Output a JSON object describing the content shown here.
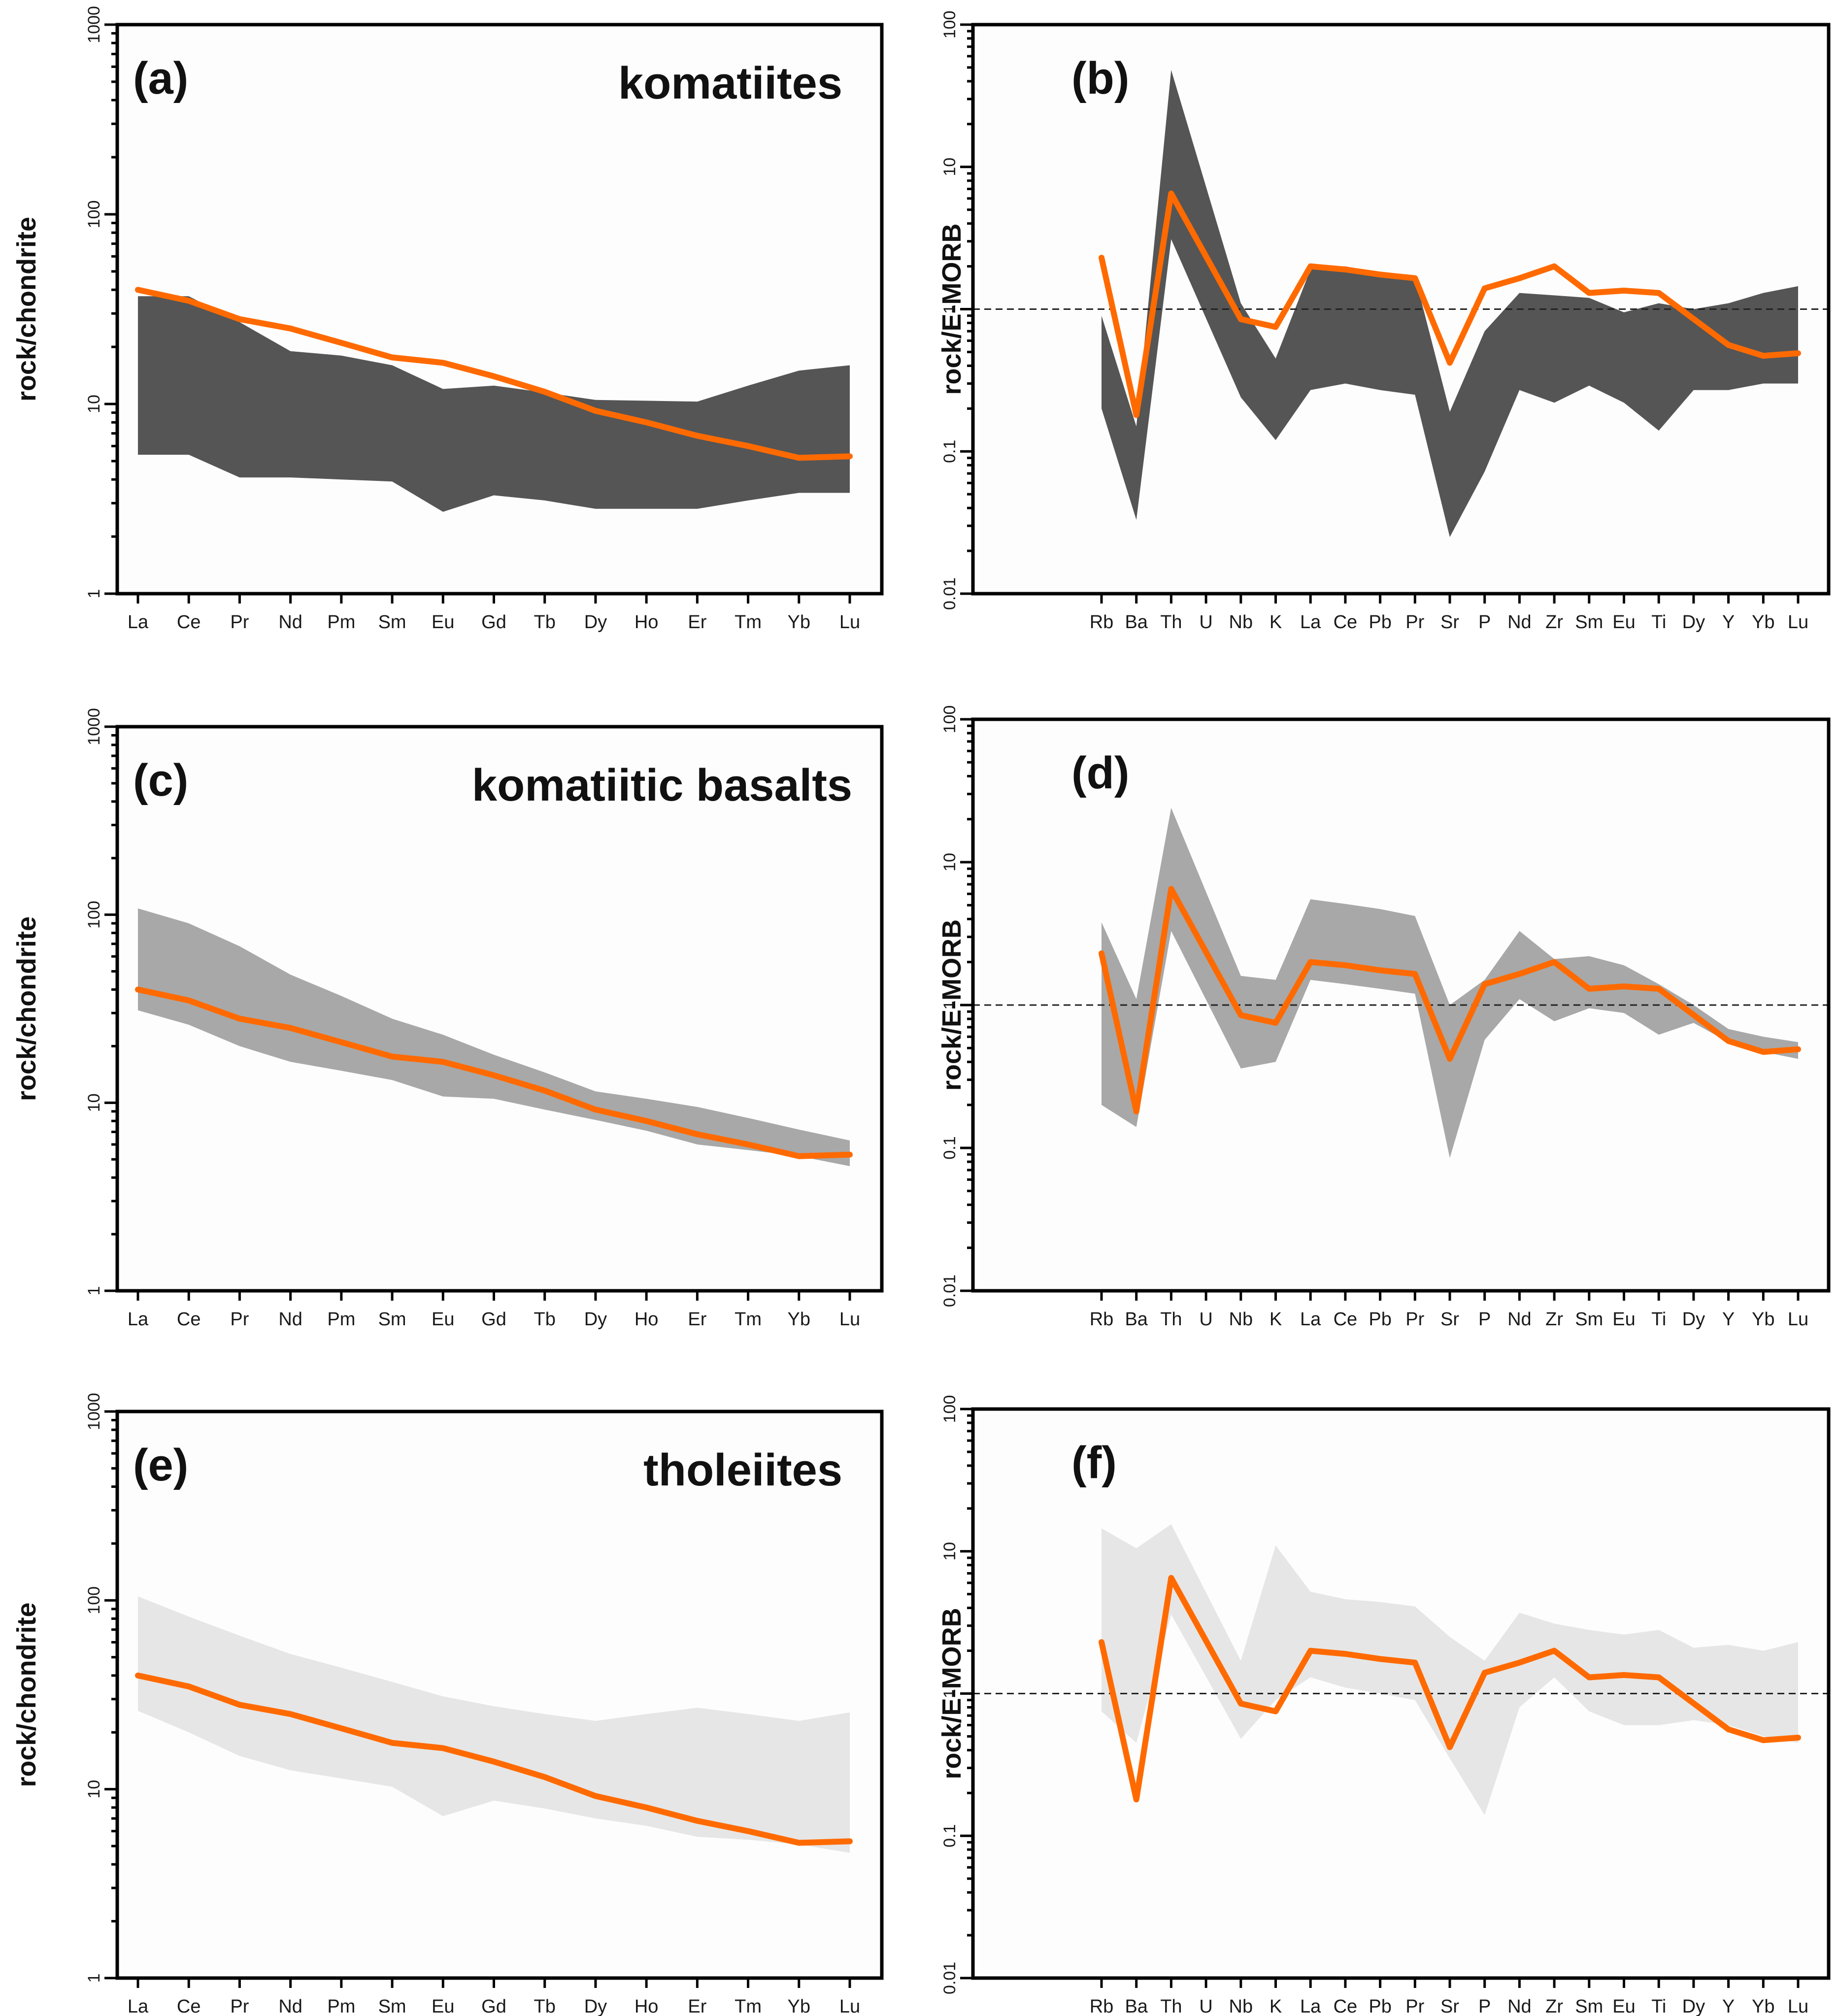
{
  "figure": {
    "colors": {
      "dark_band": "#555555",
      "medium_band": "#a8a8a8",
      "light_band": "#e6e6e6",
      "average_line": "#ff6a00",
      "reference_line": "#222222"
    }
  },
  "chart_data": [
    {
      "id": "a",
      "type": "area",
      "panel_label": "(a)",
      "title": "komatiites",
      "xlabel": "",
      "ylabel": "rock/chondrite",
      "yscale": "log",
      "ylim": [
        1,
        1000
      ],
      "ytick_labels": [
        "1",
        "10",
        "100",
        "1000"
      ],
      "grid": false,
      "categories": [
        "La",
        "Ce",
        "Pr",
        "Nd",
        "Pm",
        "Sm",
        "Eu",
        "Gd",
        "Tb",
        "Dy",
        "Ho",
        "Er",
        "Tm",
        "Yb",
        "Lu"
      ],
      "band_color": "#555555",
      "series": [
        {
          "name": "range upper",
          "values": [
            37,
            37,
            27,
            19,
            18,
            16,
            12,
            12.5,
            11.5,
            10.5,
            10.4,
            10.3,
            12.5,
            15,
            16
          ]
        },
        {
          "name": "range lower",
          "values": [
            5.4,
            5.4,
            4.1,
            4.1,
            4.0,
            3.9,
            2.7,
            3.3,
            3.1,
            2.8,
            2.8,
            2.8,
            3.1,
            3.4,
            3.4
          ]
        },
        {
          "name": "average",
          "values": [
            40,
            35,
            28,
            25,
            21,
            17.6,
            16.5,
            14,
            11.6,
            9.2,
            8,
            6.8,
            6,
            5.2,
            5.3
          ]
        }
      ]
    },
    {
      "id": "b",
      "type": "area",
      "panel_label": "(b)",
      "title": "",
      "xlabel": "",
      "ylabel": "rock/E-MORB",
      "yscale": "log",
      "ylim": [
        0.01,
        100
      ],
      "ytick_labels": [
        "0.01",
        "0.1",
        "1",
        "10",
        "100"
      ],
      "reference_value": 1,
      "grid": false,
      "categories": [
        "Rb",
        "Ba",
        "Th",
        "U",
        "Nb",
        "K",
        "La",
        "Ce",
        "Pb",
        "Pr",
        "Sr",
        "P",
        "Nd",
        "Zr",
        "Sm",
        "Eu",
        "Ti",
        "Dy",
        "Y",
        "Yb",
        "Lu"
      ],
      "band_color": "#555555",
      "series": [
        {
          "name": "range upper",
          "values": [
            0.9,
            0.15,
            48,
            null,
            1.1,
            0.45,
            1.9,
            2.0,
            1.8,
            1.7,
            0.19,
            0.7,
            1.3,
            1.25,
            1.2,
            0.95,
            1.1,
            1.0,
            1.1,
            1.3,
            1.45
          ]
        },
        {
          "name": "range lower",
          "values": [
            0.2,
            0.033,
            3.1,
            null,
            0.24,
            0.12,
            0.27,
            0.3,
            0.27,
            0.25,
            0.025,
            0.072,
            0.27,
            0.22,
            0.29,
            0.22,
            0.14,
            0.27,
            0.27,
            0.3,
            0.3
          ]
        },
        {
          "name": "average",
          "values": [
            2.3,
            0.18,
            6.5,
            null,
            0.85,
            0.75,
            2.0,
            1.9,
            1.75,
            1.65,
            0.42,
            1.4,
            1.65,
            2.0,
            1.3,
            1.35,
            1.3,
            null,
            0.56,
            0.47,
            0.49
          ]
        }
      ]
    },
    {
      "id": "c",
      "type": "area",
      "panel_label": "(c)",
      "title": "komatiitic basalts",
      "xlabel": "",
      "ylabel": "rock/chondrite",
      "yscale": "log",
      "ylim": [
        1,
        1000
      ],
      "ytick_labels": [
        "1",
        "10",
        "100",
        "1000"
      ],
      "grid": false,
      "categories": [
        "La",
        "Ce",
        "Pr",
        "Nd",
        "Pm",
        "Sm",
        "Eu",
        "Gd",
        "Tb",
        "Dy",
        "Ho",
        "Er",
        "Tm",
        "Yb",
        "Lu"
      ],
      "band_color": "#a8a8a8",
      "series": [
        {
          "name": "range upper",
          "values": [
            108,
            90,
            68,
            48,
            37,
            28,
            23,
            18,
            14.5,
            11.5,
            10.5,
            9.5,
            8.3,
            7.2,
            6.3
          ]
        },
        {
          "name": "range lower",
          "values": [
            31,
            26,
            20,
            16.5,
            14.8,
            13.2,
            10.8,
            10.5,
            9.2,
            8.1,
            7.1,
            6,
            5.6,
            5.2,
            4.6
          ]
        },
        {
          "name": "average",
          "values": [
            40,
            35,
            28,
            25,
            21,
            17.6,
            16.5,
            14,
            11.6,
            9.2,
            8,
            6.8,
            6,
            5.2,
            5.3
          ]
        }
      ]
    },
    {
      "id": "d",
      "type": "area",
      "panel_label": "(d)",
      "title": "",
      "xlabel": "",
      "ylabel": "rock/E-MORB",
      "yscale": "log",
      "ylim": [
        0.01,
        100
      ],
      "ytick_labels": [
        "0.01",
        "0.1",
        "1",
        "10",
        "100"
      ],
      "reference_value": 1,
      "grid": false,
      "categories": [
        "Rb",
        "Ba",
        "Th",
        "U",
        "Nb",
        "K",
        "La",
        "Ce",
        "Pb",
        "Pr",
        "Sr",
        "P",
        "Nd",
        "Zr",
        "Sm",
        "Eu",
        "Ti",
        "Dy",
        "Y",
        "Yb",
        "Lu"
      ],
      "band_color": "#a8a8a8",
      "series": [
        {
          "name": "range upper",
          "values": [
            3.8,
            1.1,
            24,
            null,
            1.6,
            1.5,
            5.5,
            5.1,
            4.7,
            4.2,
            1.0,
            1.5,
            3.3,
            2.1,
            2.2,
            1.9,
            1.4,
            1.0,
            0.68,
            0.6,
            0.55
          ]
        },
        {
          "name": "range lower",
          "values": [
            0.2,
            0.14,
            3.3,
            null,
            0.36,
            0.4,
            1.5,
            1.4,
            1.3,
            1.2,
            0.085,
            0.57,
            1.1,
            0.77,
            0.95,
            0.88,
            0.62,
            0.75,
            0.55,
            0.47,
            0.42
          ]
        },
        {
          "name": "average",
          "values": [
            2.3,
            0.18,
            6.5,
            null,
            0.85,
            0.75,
            2.0,
            1.9,
            1.75,
            1.65,
            0.42,
            1.4,
            1.65,
            2.0,
            1.3,
            1.35,
            1.3,
            null,
            0.56,
            0.47,
            0.49
          ]
        }
      ]
    },
    {
      "id": "e",
      "type": "area",
      "panel_label": "(e)",
      "title": "tholeiites",
      "xlabel": "",
      "ylabel": "rock/chondrite",
      "yscale": "log",
      "ylim": [
        1,
        1000
      ],
      "ytick_labels": [
        "1",
        "10",
        "100",
        "1000"
      ],
      "grid": false,
      "categories": [
        "La",
        "Ce",
        "Pr",
        "Nd",
        "Pm",
        "Sm",
        "Eu",
        "Gd",
        "Tb",
        "Dy",
        "Ho",
        "Er",
        "Tm",
        "Yb",
        "Lu"
      ],
      "band_color": "#e6e6e6",
      "series": [
        {
          "name": "range upper",
          "values": [
            105,
            82,
            65,
            52,
            44,
            37,
            31,
            27.5,
            25,
            23,
            25,
            27,
            25,
            23,
            25.5
          ]
        },
        {
          "name": "range lower",
          "values": [
            26,
            20,
            15,
            12.6,
            11.4,
            10.3,
            7.2,
            8.7,
            7.9,
            7,
            6.4,
            5.6,
            5.4,
            5.1,
            4.6
          ]
        },
        {
          "name": "average",
          "values": [
            40,
            35,
            28,
            25,
            21,
            17.6,
            16.5,
            14,
            11.6,
            9.2,
            8,
            6.8,
            6,
            5.2,
            5.3
          ]
        }
      ]
    },
    {
      "id": "f",
      "type": "area",
      "panel_label": "(f)",
      "title": "",
      "xlabel": "",
      "ylabel": "rock/E-MORB",
      "yscale": "log",
      "ylim": [
        0.01,
        100
      ],
      "ytick_labels": [
        "0.01",
        "0.1",
        "1",
        "10",
        "100"
      ],
      "reference_value": 1,
      "grid": false,
      "categories": [
        "Rb",
        "Ba",
        "Th",
        "U",
        "Nb",
        "K",
        "La",
        "Ce",
        "Pb",
        "Pr",
        "Sr",
        "P",
        "Nd",
        "Zr",
        "Sm",
        "Eu",
        "Ti",
        "Dy",
        "Y",
        "Yb",
        "Lu"
      ],
      "band_color": "#e6e6e6",
      "series": [
        {
          "name": "range upper",
          "values": [
            14.5,
            10.5,
            15.5,
            null,
            1.7,
            11,
            5.2,
            4.6,
            4.4,
            4.1,
            2.5,
            1.7,
            3.7,
            3.1,
            2.8,
            2.6,
            2.8,
            2.1,
            2.2,
            2.0,
            2.3
          ]
        },
        {
          "name": "range lower",
          "values": [
            0.75,
            0.45,
            3.6,
            null,
            0.48,
            0.9,
            1.3,
            1.1,
            1.0,
            0.9,
            0.35,
            0.14,
            0.8,
            1.3,
            0.75,
            0.6,
            0.6,
            0.65,
            0.6,
            0.5,
            0.45
          ]
        },
        {
          "name": "average",
          "values": [
            2.3,
            0.18,
            6.5,
            null,
            0.85,
            0.75,
            2.0,
            1.9,
            1.75,
            1.65,
            0.42,
            1.4,
            1.65,
            2.0,
            1.3,
            1.35,
            1.3,
            null,
            0.56,
            0.47,
            0.49
          ]
        }
      ]
    }
  ]
}
